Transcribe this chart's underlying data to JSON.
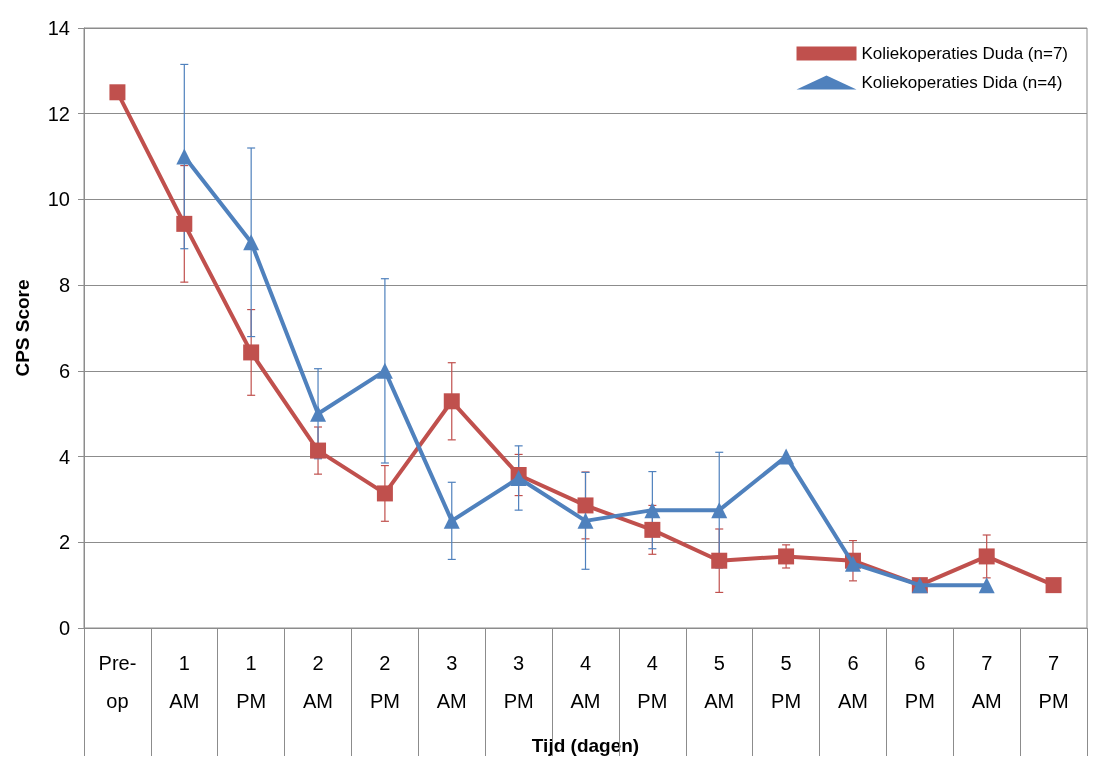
{
  "chart_data": {
    "type": "line",
    "xlabel": "Tijd (dagen)",
    "ylabel": "CPS Score",
    "categories": [
      "Pre-op",
      "1 AM",
      "1 PM",
      "2 AM",
      "2 PM",
      "3 AM",
      "3 PM",
      "4 AM",
      "4 PM",
      "5 AM",
      "5 PM",
      "6 AM",
      "6 PM",
      "7 AM",
      "7 PM"
    ],
    "series": [
      {
        "name": "Koliekoperaties Duda (n=7)",
        "color": "#c0504d",
        "marker": "square",
        "values": [
          12.5,
          9.43,
          6.43,
          4.14,
          3.14,
          5.29,
          3.57,
          2.86,
          2.29,
          1.57,
          1.67,
          1.57,
          1,
          1.67,
          1
        ],
        "errors": [
          null,
          1.36,
          1.0,
          0.55,
          0.65,
          0.9,
          0.48,
          0.78,
          0.57,
          0.74,
          0.27,
          0.47,
          null,
          0.5,
          null
        ]
      },
      {
        "name": "Koliekoperaties Dida (n=4)",
        "color": "#4f81bd",
        "marker": "triangle",
        "values": [
          null,
          11,
          9,
          5,
          6,
          2.5,
          3.5,
          2.5,
          2.75,
          2.75,
          4,
          1.5,
          1,
          1,
          null
        ],
        "errors": [
          null,
          2.15,
          2.2,
          1.05,
          2.15,
          0.9,
          0.75,
          1.13,
          0.9,
          1.35,
          null,
          null,
          null,
          null,
          null
        ]
      }
    ],
    "ylim": [
      0,
      14
    ],
    "yticks": [
      0,
      2,
      4,
      6,
      8,
      10,
      12,
      14
    ],
    "grid": "y",
    "legend": "top right"
  }
}
